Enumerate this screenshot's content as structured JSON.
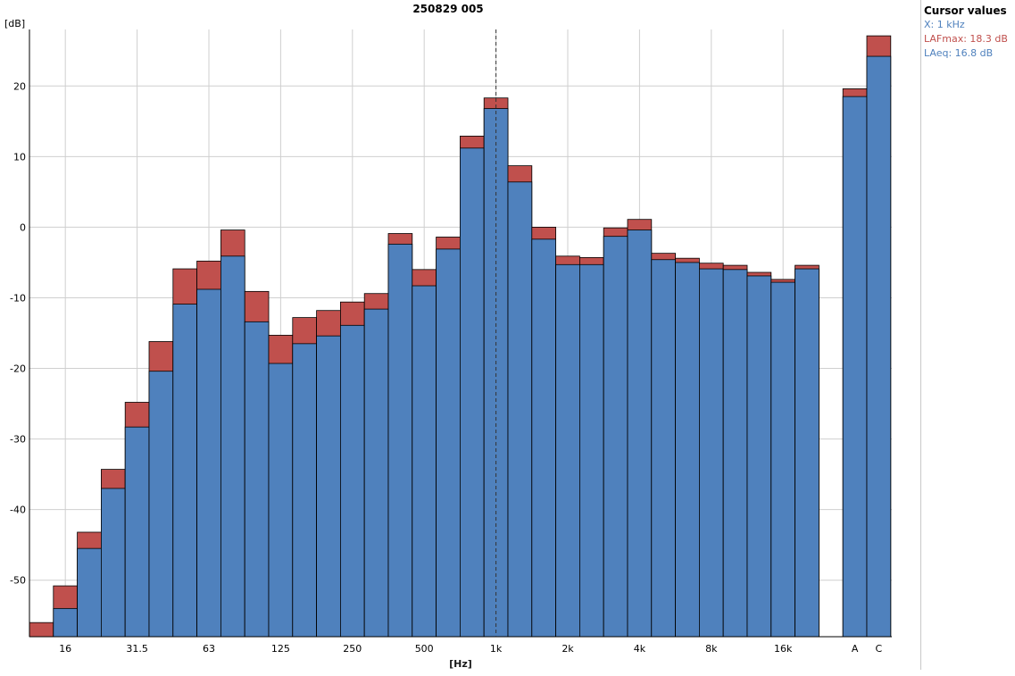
{
  "chart_data": {
    "type": "bar",
    "title": "250829 005",
    "ylabel": "[dB]",
    "xlabel": "[Hz]",
    "ylim": [
      -58,
      28
    ],
    "yticks": [
      -50,
      -40,
      -30,
      -20,
      -10,
      0,
      10,
      20
    ],
    "grid": true,
    "bars": [
      {
        "freq": "12.5",
        "laeq": -58,
        "lafmax": -56
      },
      {
        "freq": "16",
        "laeq": -54,
        "lafmax": -50.8
      },
      {
        "freq": "20",
        "laeq": -45.5,
        "lafmax": -43.2
      },
      {
        "freq": "25",
        "laeq": -37,
        "lafmax": -34.3
      },
      {
        "freq": "31.5",
        "laeq": -28.3,
        "lafmax": -24.8
      },
      {
        "freq": "40",
        "laeq": -20.4,
        "lafmax": -16.2
      },
      {
        "freq": "50",
        "laeq": -10.9,
        "lafmax": -5.9
      },
      {
        "freq": "63",
        "laeq": -8.8,
        "lafmax": -4.8
      },
      {
        "freq": "80",
        "laeq": -4.1,
        "lafmax": -0.4
      },
      {
        "freq": "100",
        "laeq": -13.4,
        "lafmax": -9.1
      },
      {
        "freq": "125",
        "laeq": -19.3,
        "lafmax": -15.3
      },
      {
        "freq": "160",
        "laeq": -16.5,
        "lafmax": -12.8
      },
      {
        "freq": "200",
        "laeq": -15.4,
        "lafmax": -11.8
      },
      {
        "freq": "250",
        "laeq": -13.9,
        "lafmax": -10.6
      },
      {
        "freq": "315",
        "laeq": -11.6,
        "lafmax": -9.4
      },
      {
        "freq": "400",
        "laeq": -2.4,
        "lafmax": -0.9
      },
      {
        "freq": "500",
        "laeq": -8.3,
        "lafmax": -6
      },
      {
        "freq": "630",
        "laeq": -3.1,
        "lafmax": -1.4
      },
      {
        "freq": "800",
        "laeq": 11.2,
        "lafmax": 12.9
      },
      {
        "freq": "1k",
        "laeq": 16.8,
        "lafmax": 18.3
      },
      {
        "freq": "1.25k",
        "laeq": 6.4,
        "lafmax": 8.7
      },
      {
        "freq": "1.6k",
        "laeq": -1.7,
        "lafmax": 0
      },
      {
        "freq": "2k",
        "laeq": -5.3,
        "lafmax": -4.1
      },
      {
        "freq": "2.5k",
        "laeq": -5.3,
        "lafmax": -4.3
      },
      {
        "freq": "3.15k",
        "laeq": -1.3,
        "lafmax": -0.1
      },
      {
        "freq": "4k",
        "laeq": -0.4,
        "lafmax": 1.1
      },
      {
        "freq": "5k",
        "laeq": -4.6,
        "lafmax": -3.7
      },
      {
        "freq": "6.3k",
        "laeq": -5,
        "lafmax": -4.4
      },
      {
        "freq": "8k",
        "laeq": -5.9,
        "lafmax": -5.1
      },
      {
        "freq": "10k",
        "laeq": -6,
        "lafmax": -5.4
      },
      {
        "freq": "12.5k",
        "laeq": -6.9,
        "lafmax": -6.4
      },
      {
        "freq": "16k",
        "laeq": -7.8,
        "lafmax": -7.4
      },
      {
        "freq": "20k",
        "laeq": -5.9,
        "lafmax": -5.4
      },
      {
        "freq": "",
        "laeq": null,
        "lafmax": null
      },
      {
        "freq": "A",
        "laeq": 18.5,
        "lafmax": 19.6
      },
      {
        "freq": "C",
        "laeq": 24.2,
        "lafmax": 27.1
      }
    ],
    "xtick_labels": [
      {
        "index": 1,
        "label": "16"
      },
      {
        "index": 4,
        "label": "31.5"
      },
      {
        "index": 7,
        "label": "63"
      },
      {
        "index": 10,
        "label": "125"
      },
      {
        "index": 13,
        "label": "250"
      },
      {
        "index": 16,
        "label": "500"
      },
      {
        "index": 19,
        "label": "1k"
      },
      {
        "index": 22,
        "label": "2k"
      },
      {
        "index": 25,
        "label": "4k"
      },
      {
        "index": 28,
        "label": "8k"
      },
      {
        "index": 31,
        "label": "16k"
      },
      {
        "index": 34,
        "label": "A"
      },
      {
        "index": 35,
        "label": "C"
      }
    ],
    "cursor_index": 19,
    "series": [
      {
        "name": "LAFmax",
        "color": "#c0504d"
      },
      {
        "name": "LAeq",
        "color": "#4f81bd"
      }
    ]
  },
  "cursor_panel": {
    "heading": "Cursor values",
    "x_line": "X: 1 kHz",
    "lafmax_line": "LAFmax: 18.3 dB",
    "laeq_line": "LAeq: 16.8 dB",
    "x_color": "#4f81bd",
    "lafmax_color": "#c0504d",
    "laeq_color": "#4f81bd"
  }
}
